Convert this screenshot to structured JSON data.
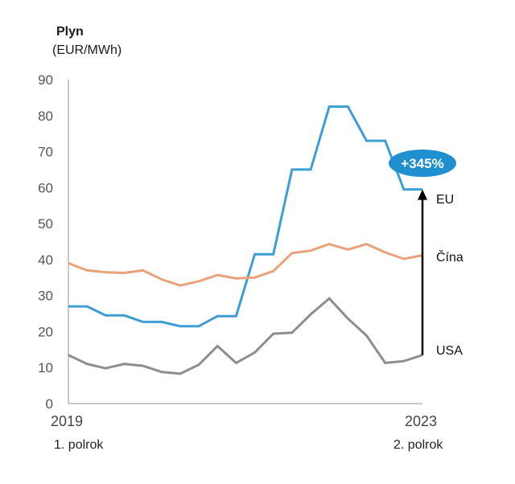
{
  "chart_data": {
    "type": "line",
    "title": "Plyn",
    "ylabel": "(EUR/MWh)",
    "ylim": [
      0,
      90
    ],
    "yticks": [
      0,
      10,
      20,
      30,
      40,
      50,
      60,
      70,
      80,
      90
    ],
    "x_start_label": "2019",
    "x_start_sublabel": "1. polrok",
    "x_end_label": "2023",
    "x_end_sublabel": "2. polrok",
    "annotation": "+345%",
    "colors": {
      "eu": "#3d9ed6",
      "cina": "#e9a27a",
      "usa": "#8e8e8e",
      "badge": "#1f8fd0",
      "arrow": "#000000"
    },
    "series": [
      {
        "name": "EU",
        "values": [
          27,
          27,
          24.5,
          24.5,
          22.7,
          22.7,
          21.5,
          21.5,
          24.3,
          24.3,
          41.5,
          41.5,
          65,
          65,
          82.5,
          82.5,
          73,
          73,
          59.5,
          59.5
        ]
      },
      {
        "name": "Čína",
        "values": [
          39,
          37,
          36.5,
          36.3,
          37,
          34.5,
          32.8,
          34,
          35.7,
          34.8,
          35,
          36.8,
          41.8,
          42.5,
          44.3,
          42.8,
          44.3,
          42,
          40.2,
          41.2
        ]
      },
      {
        "name": "USA",
        "values": [
          13.5,
          11,
          9.8,
          11,
          10.5,
          8.8,
          8.3,
          10.8,
          16,
          11.3,
          14.2,
          19.4,
          19.7,
          24.8,
          29.2,
          23.6,
          18.9,
          11.3,
          11.8,
          13.5
        ]
      }
    ]
  }
}
